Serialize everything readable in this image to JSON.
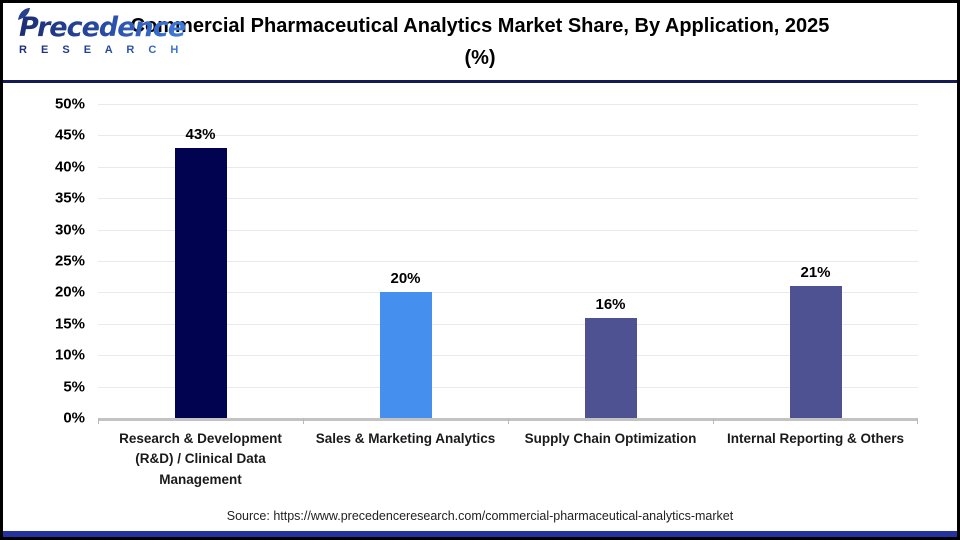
{
  "header": {
    "logo": {
      "brand": "Precedence",
      "sub": "R E S E A R C H"
    },
    "title": "Commercial Pharmaceutical Analytics Market Share, By Application, 2025 (%)"
  },
  "chart_data": {
    "type": "bar",
    "categories": [
      "Research & Development (R&D) / Clinical Data Management",
      "Sales & Marketing Analytics",
      "Supply Chain Optimization",
      "Internal Reporting & Others"
    ],
    "values": [
      43,
      20,
      16,
      21
    ],
    "value_labels": [
      "43%",
      "20%",
      "16%",
      "21%"
    ],
    "bar_colors": [
      "#010350",
      "#4590ee",
      "#4e5293",
      "#4e5293"
    ],
    "title": "Commercial Pharmaceutical Analytics Market Share, By Application, 2025 (%)",
    "xlabel": "",
    "ylabel": "",
    "ylim": [
      0,
      50
    ],
    "yticks": [
      "50%",
      "45%",
      "40%",
      "35%",
      "30%",
      "25%",
      "20%",
      "15%",
      "10%",
      "5%",
      "0%"
    ],
    "grid": true,
    "legend": false
  },
  "footer": {
    "source": "Source: https://www.precedenceresearch.com/commercial-pharmaceutical-analytics-market"
  },
  "colors": {
    "header_divider": "#151b54",
    "bottom_strip": "#2433a0",
    "gridline": "#e9e9e9",
    "axis": "#c3c3c3",
    "brand_dark": "#1c2e74",
    "brand_light": "#3f7de0"
  }
}
